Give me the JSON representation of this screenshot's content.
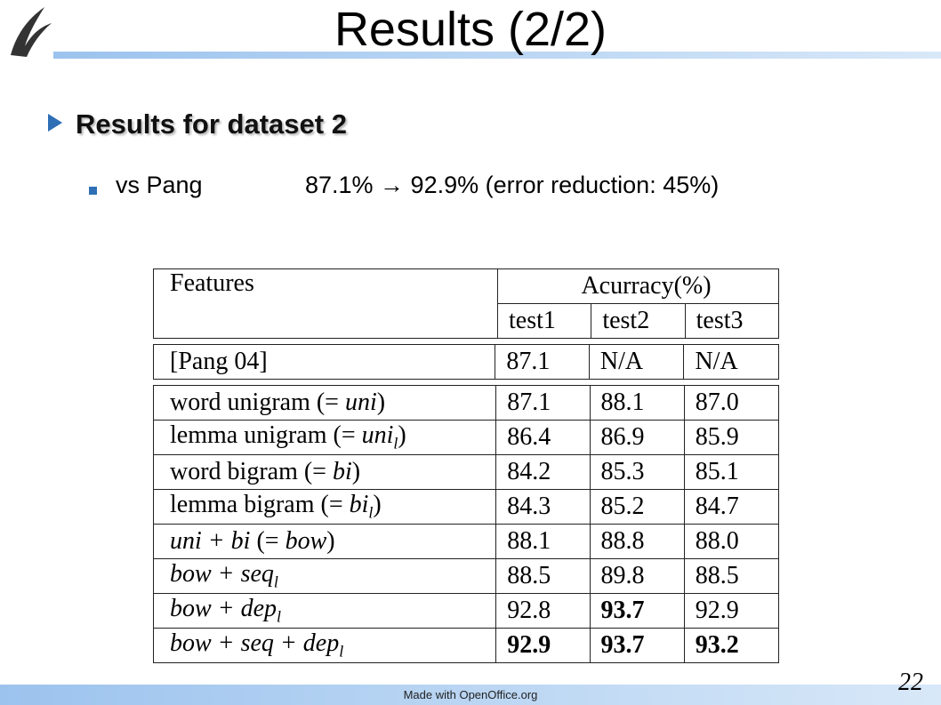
{
  "header": {
    "title": "Results (2/2)"
  },
  "bullets": [
    {
      "text": "Results for dataset 2",
      "sub": [
        {
          "label": "vs Pang",
          "text": "87.1% → 92.9% (error reduction: 45%)"
        }
      ]
    }
  ],
  "table": {
    "feature_header": "Features",
    "metric_header": "Acurracy(%)",
    "columns": [
      "test1",
      "test2",
      "test3"
    ],
    "groups": [
      [
        {
          "feature": [
            {
              "text": "[Pang 04]"
            }
          ],
          "values": [
            "87.1",
            "N/A",
            "N/A"
          ],
          "bold": [
            false,
            false,
            false
          ]
        }
      ],
      [
        {
          "feature": [
            {
              "text": "word unigram (= "
            },
            {
              "text": "uni",
              "style": "italic"
            },
            {
              "text": ")"
            }
          ],
          "values": [
            "87.1",
            "88.1",
            "87.0"
          ],
          "bold": [
            false,
            false,
            false
          ]
        },
        {
          "feature": [
            {
              "text": "lemma unigram (= "
            },
            {
              "text": "uni",
              "style": "italic"
            },
            {
              "text": "l",
              "style": "sub"
            },
            {
              "text": ")"
            }
          ],
          "values": [
            "86.4",
            "86.9",
            "85.9"
          ],
          "bold": [
            false,
            false,
            false
          ]
        },
        {
          "feature": [
            {
              "text": "word bigram (= "
            },
            {
              "text": "bi",
              "style": "italic"
            },
            {
              "text": ")"
            }
          ],
          "values": [
            "84.2",
            "85.3",
            "85.1"
          ],
          "bold": [
            false,
            false,
            false
          ]
        },
        {
          "feature": [
            {
              "text": "lemma bigram (= "
            },
            {
              "text": "bi",
              "style": "italic"
            },
            {
              "text": "l",
              "style": "sub"
            },
            {
              "text": ")"
            }
          ],
          "values": [
            "84.3",
            "85.2",
            "84.7"
          ],
          "bold": [
            false,
            false,
            false
          ]
        },
        {
          "feature": [
            {
              "text": "uni + bi",
              "style": "italic"
            },
            {
              "text": " (= "
            },
            {
              "text": "bow",
              "style": "italic"
            },
            {
              "text": ")"
            }
          ],
          "values": [
            "88.1",
            "88.8",
            "88.0"
          ],
          "bold": [
            false,
            false,
            false
          ]
        },
        {
          "feature": [
            {
              "text": "bow + seq",
              "style": "italic"
            },
            {
              "text": "l",
              "style": "sub"
            }
          ],
          "values": [
            "88.5",
            "89.8",
            "88.5"
          ],
          "bold": [
            false,
            false,
            false
          ]
        },
        {
          "feature": [
            {
              "text": "bow + dep",
              "style": "italic"
            },
            {
              "text": "l",
              "style": "sub"
            }
          ],
          "values": [
            "92.8",
            "93.7",
            "92.9"
          ],
          "bold": [
            false,
            true,
            false
          ]
        },
        {
          "feature": [
            {
              "text": "bow + seq + dep",
              "style": "italic"
            },
            {
              "text": "l",
              "style": "sub"
            }
          ],
          "values": [
            "92.9",
            "93.7",
            "93.2"
          ],
          "bold": [
            true,
            true,
            true
          ]
        }
      ]
    ]
  },
  "footer": {
    "credit": "Made with OpenOffice.org",
    "page": "22"
  }
}
